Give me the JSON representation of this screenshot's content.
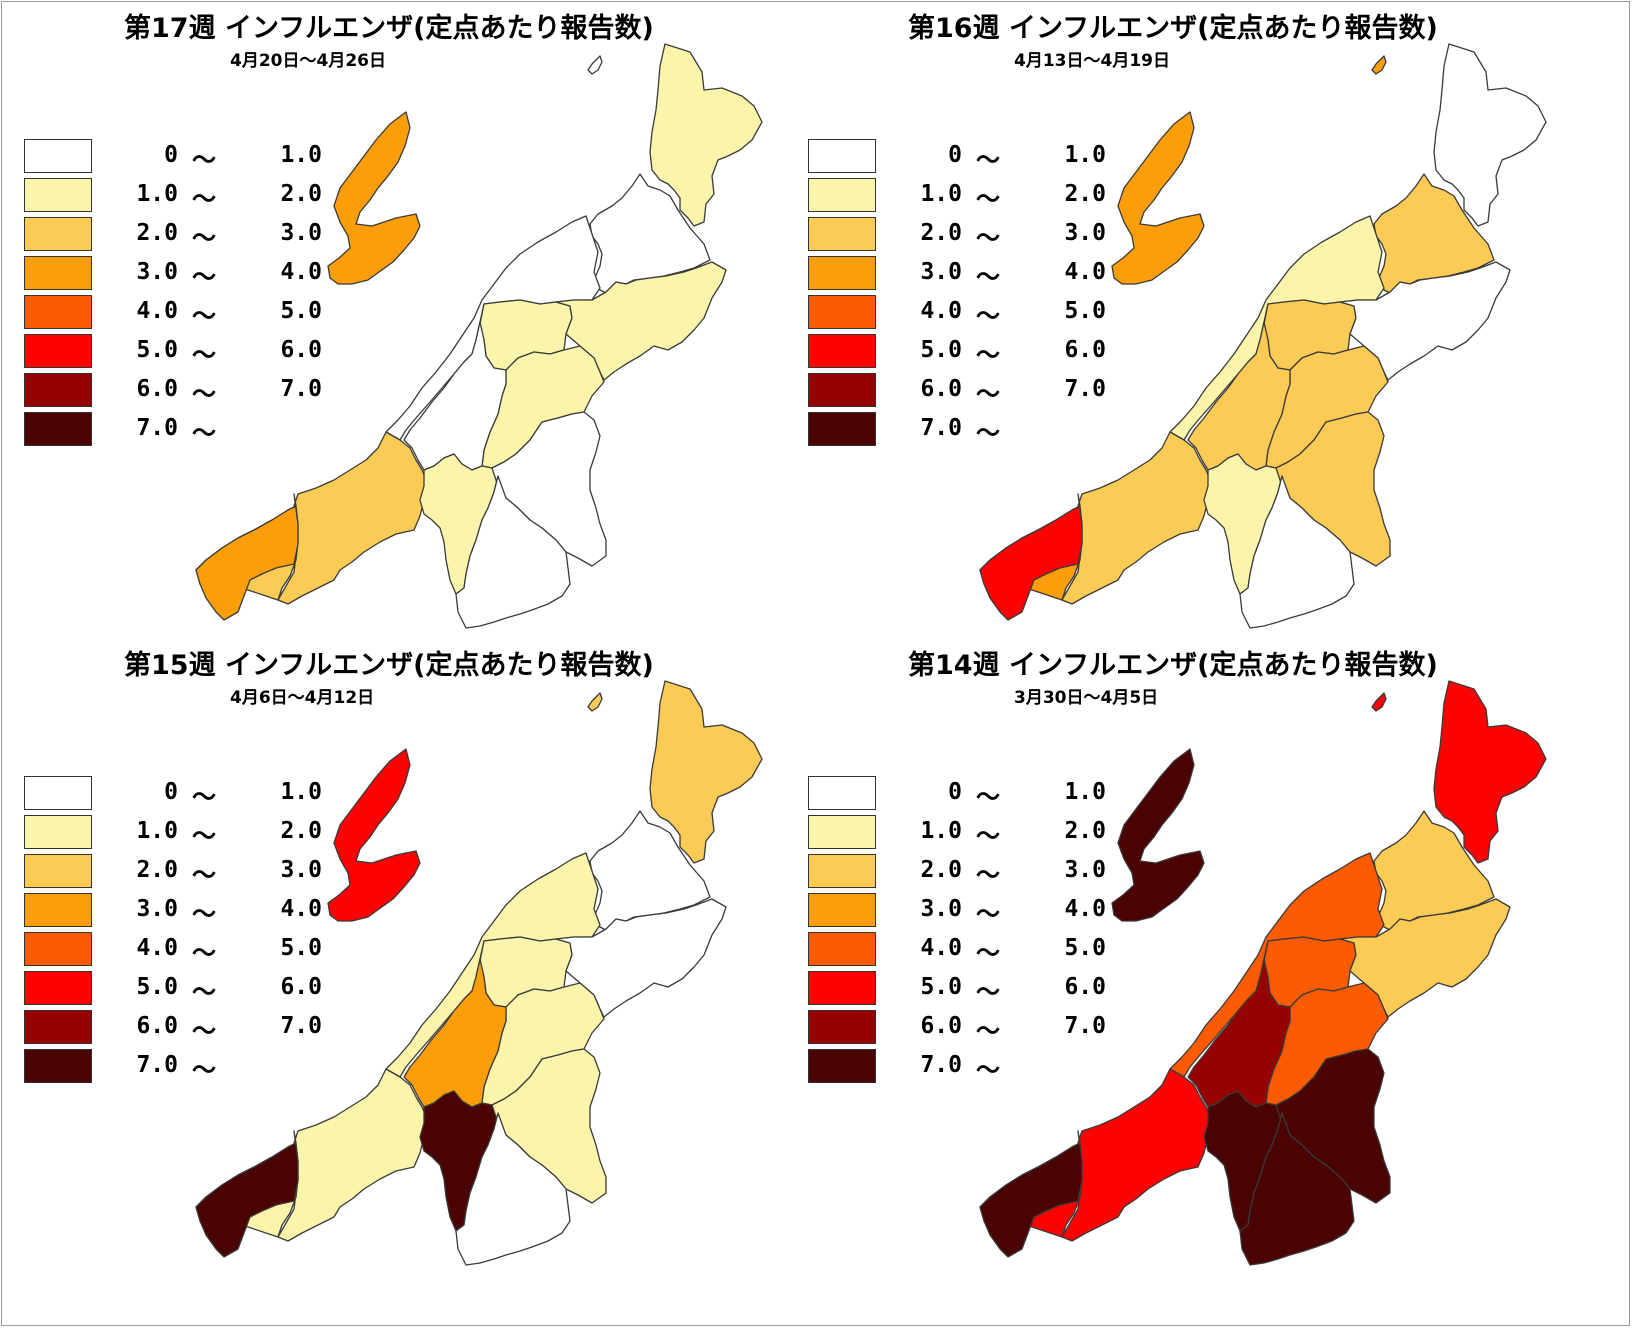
{
  "legend": [
    {
      "lo": "0",
      "tilde": "～",
      "hi": "1.0",
      "color": "#ffffff"
    },
    {
      "lo": "1.0",
      "tilde": "～",
      "hi": "2.0",
      "color": "#faf5aa"
    },
    {
      "lo": "2.0",
      "tilde": "～",
      "hi": "3.0",
      "color": "#fccb55"
    },
    {
      "lo": "3.0",
      "tilde": "～",
      "hi": "4.0",
      "color": "#fb9e0a"
    },
    {
      "lo": "4.0",
      "tilde": "～",
      "hi": "5.0",
      "color": "#fc5b02"
    },
    {
      "lo": "5.0",
      "tilde": "～",
      "hi": "6.0",
      "color": "#fc0202"
    },
    {
      "lo": "6.0",
      "tilde": "～",
      "hi": "7.0",
      "color": "#960202"
    },
    {
      "lo": "7.0",
      "tilde": "～",
      "hi": "",
      "color": "#4a0202"
    }
  ],
  "panels": [
    {
      "title": "第17週 インフルエンザ(定点あたり報告数)",
      "dates": "4月20日～4月26日",
      "regions": {
        "sado": 3,
        "awashima": 0,
        "murakami": 1,
        "shibata": 0,
        "nc_west": 0,
        "niigata_city": 1,
        "agano": 1,
        "sanjo": 1,
        "tsubame": 0,
        "kashiwazaki": 2,
        "nagaoka": 1,
        "uonuma": 0,
        "minamiuonuma": 0,
        "joetsu": 2,
        "itoigawa": 3
      }
    },
    {
      "title": "第16週 インフルエンザ(定点あたり報告数)",
      "dates": "4月13日～4月19日",
      "regions": {
        "sado": 3,
        "awashima": 3,
        "murakami": 0,
        "shibata": 2,
        "nc_west": 1,
        "niigata_city": 2,
        "agano": 0,
        "sanjo": 2,
        "tsubame": 2,
        "kashiwazaki": 2,
        "nagaoka": 1,
        "uonuma": 2,
        "minamiuonuma": 0,
        "joetsu": 3,
        "itoigawa": 5
      }
    },
    {
      "title": "第15週 インフルエンザ(定点あたり報告数)",
      "dates": "4月6日～4月12日",
      "regions": {
        "sado": 5,
        "awashima": 2,
        "murakami": 2,
        "shibata": 0,
        "nc_west": 1,
        "niigata_city": 1,
        "agano": 0,
        "sanjo": 1,
        "tsubame": 3,
        "kashiwazaki": 1,
        "nagaoka": 7,
        "uonuma": 1,
        "minamiuonuma": 0,
        "joetsu": 1,
        "itoigawa": 7
      }
    },
    {
      "title": "第14週 インフルエンザ(定点あたり報告数)",
      "dates": "3月30日～4月5日",
      "regions": {
        "sado": 7,
        "awashima": 5,
        "murakami": 5,
        "shibata": 2,
        "nc_west": 4,
        "niigata_city": 4,
        "agano": 2,
        "sanjo": 4,
        "tsubame": 6,
        "kashiwazaki": 5,
        "nagaoka": 7,
        "uonuma": 7,
        "minamiuonuma": 7,
        "joetsu": 5,
        "itoigawa": 7
      }
    }
  ]
}
